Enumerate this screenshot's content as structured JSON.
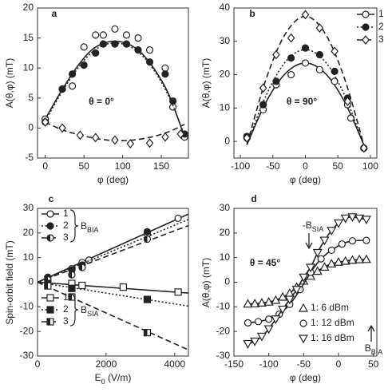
{
  "chart_data": [
    {
      "type": "scatter",
      "panel": "a",
      "note": "θ = 0°",
      "x_label": "φ (deg)",
      "y_label": "A(θ,φ)  (mT)",
      "xlim": [
        -10,
        185
      ],
      "xticks": [
        0,
        50,
        100,
        150
      ],
      "ylim": [
        -5,
        20
      ],
      "yticks": [
        -5,
        0,
        5,
        10,
        15,
        20
      ],
      "fit_x": [
        0,
        20,
        40,
        60,
        80,
        100,
        120,
        140,
        160,
        180
      ],
      "series": [
        {
          "marker": "circle-open",
          "dash": "solid",
          "color": "#222",
          "x": [
            0,
            22,
            35,
            50,
            65,
            75,
            90,
            105,
            120,
            135,
            155,
            165,
            180
          ],
          "values": [
            1.5,
            6.5,
            7,
            13.5,
            15.5,
            15.5,
            16.5,
            15.5,
            15,
            13,
            10,
            3.5,
            -1.5
          ],
          "fit_values": [
            1.5,
            6,
            10,
            13,
            14.3,
            14.3,
            13,
            10,
            5.5,
            -1.5
          ]
        },
        {
          "marker": "circle-filled",
          "dash": "dotted",
          "color": "#222",
          "x": [
            0,
            22,
            35,
            50,
            65,
            75,
            90,
            105,
            120,
            135,
            155,
            165,
            180
          ],
          "values": [
            1,
            6.5,
            9,
            10.5,
            12.5,
            14,
            14,
            14,
            13,
            11,
            9,
            4.5,
            -1
          ],
          "fit_values": [
            1.2,
            5.7,
            9.6,
            12.6,
            14,
            14,
            12.7,
            9.7,
            5.2,
            -1.2
          ]
        },
        {
          "marker": "diamond-open",
          "dash": "dashed",
          "color": "#222",
          "x": [
            0,
            22,
            45,
            65,
            90,
            110,
            135,
            155,
            175
          ],
          "values": [
            1,
            0,
            -1.2,
            -1.6,
            -2,
            -2.6,
            -2.5,
            -1.5,
            -1
          ],
          "fit_values": [
            1,
            -0.2,
            -1,
            -1.6,
            -2,
            -2.1,
            -1.9,
            -1.4,
            -0.6,
            0.6
          ]
        }
      ]
    },
    {
      "type": "scatter",
      "panel": "b",
      "note": "θ = 90°",
      "x_label": "φ (deg)",
      "y_label": "A(θ,φ)  (mT)",
      "xlim": [
        -110,
        110
      ],
      "xticks": [
        -100,
        -50,
        0,
        50,
        100
      ],
      "ylim": [
        -5,
        40
      ],
      "yticks": [
        0,
        10,
        20,
        30,
        40
      ],
      "fit_x": [
        -90,
        -60,
        -30,
        0,
        30,
        60,
        90
      ],
      "series": [
        {
          "name": "1",
          "marker": "circle-open",
          "dash": "solid",
          "color": "#222",
          "x": [
            -90,
            -65,
            -45,
            -22,
            0,
            22,
            45,
            65,
            70,
            90
          ],
          "values": [
            1,
            9.5,
            17,
            20,
            23.5,
            21.5,
            18,
            11,
            7,
            -2
          ],
          "fit_values": [
            -1,
            12,
            20.5,
            23.5,
            20.5,
            12,
            -1
          ]
        },
        {
          "name": "2",
          "marker": "circle-filled",
          "dash": "dotted",
          "color": "#222",
          "x": [
            -90,
            -65,
            -45,
            -22,
            0,
            22,
            45,
            65,
            90
          ],
          "values": [
            1.5,
            11,
            18,
            25,
            28,
            26,
            21,
            13,
            -2
          ],
          "fit_values": [
            -1,
            14,
            24,
            27.5,
            24,
            14,
            -1
          ]
        },
        {
          "name": "3",
          "marker": "diamond-open",
          "dash": "dashed",
          "color": "#222",
          "x": [
            -90,
            -65,
            -45,
            -22,
            0,
            22,
            45,
            65,
            90
          ],
          "values": [
            1,
            16,
            26,
            31,
            38,
            34,
            27,
            12,
            -2
          ],
          "fit_values": [
            -1,
            19,
            32.5,
            37.5,
            32.5,
            19,
            -1
          ]
        }
      ]
    },
    {
      "type": "scatter",
      "panel": "c",
      "x_label": {
        "main": "E",
        "sub": "0",
        "rest": " (V/m)"
      },
      "y_label": "Spin-orbit field  (mT)",
      "xlim": [
        0,
        4400
      ],
      "xticks": [
        0,
        2000,
        4000
      ],
      "ylim": [
        -30,
        30
      ],
      "yticks": [
        -30,
        -20,
        -10,
        0,
        10,
        20,
        30
      ],
      "group_labels": [
        {
          "main": "B",
          "sub": "BIA"
        },
        {
          "main": "B",
          "sub": "SIA"
        }
      ],
      "fit_x": [
        0,
        4400
      ],
      "series": [
        {
          "name": "1",
          "marker": "circle-open",
          "dash": "solid",
          "color": "#222",
          "x": [
            300,
            1000,
            1300,
            1500,
            3200,
            4100
          ],
          "values": [
            2,
            5.5,
            8,
            9,
            19.5,
            26
          ],
          "fit_values": [
            0,
            27.7
          ]
        },
        {
          "name": "2",
          "marker": "circle-filled",
          "dash": "dotted",
          "color": "#222",
          "x": [
            300,
            1000,
            1300,
            3200
          ],
          "values": [
            2,
            5,
            7,
            20.5
          ],
          "fit_values": [
            0,
            25.5
          ]
        },
        {
          "name": "3",
          "marker": "circle-half",
          "dash": "dashed",
          "color": "#222",
          "x": [
            300,
            1000,
            1300,
            3200
          ],
          "values": [
            1,
            3,
            6,
            17.5
          ],
          "fit_values": [
            0,
            23
          ]
        },
        {
          "name": "1",
          "marker": "square-open",
          "dash": "solid",
          "color": "#222",
          "x": [
            1000,
            1300,
            2500,
            4100
          ],
          "values": [
            -0.5,
            -1.3,
            -2,
            -4
          ],
          "fit_values": [
            0,
            -4.4
          ]
        },
        {
          "name": "2",
          "marker": "square-filled",
          "dash": "dotted",
          "color": "#222",
          "x": [
            300,
            1000,
            3200
          ],
          "values": [
            -0.5,
            -2.5,
            -7
          ],
          "fit_values": [
            0,
            -9.7
          ]
        },
        {
          "name": "3",
          "marker": "square-half",
          "dash": "dashed",
          "color": "#222",
          "x": [
            300,
            1000,
            3200
          ],
          "values": [
            -1.5,
            -6,
            -20.5
          ],
          "fit_values": [
            0,
            -27.5
          ]
        }
      ]
    },
    {
      "type": "scatter",
      "panel": "d",
      "note": "θ = 45°",
      "x_label": "φ (deg)",
      "y_label": "A(θ,φ)  (mT)",
      "xlim": [
        -150,
        55
      ],
      "xticks": [
        -150,
        -100,
        -50,
        0,
        50
      ],
      "ylim": [
        -30,
        30
      ],
      "yticks": [
        -30,
        -20,
        -10,
        0,
        10,
        20,
        30
      ],
      "arrows": [
        {
          "main": "-B",
          "sub": "SIA"
        },
        {
          "main": "B",
          "sub": "BIA"
        }
      ],
      "line": true,
      "series": [
        {
          "name": "1:  6 dBm",
          "marker": "triangle-up-open",
          "dash": "solid",
          "color": "#222",
          "x": [
            -130,
            -120,
            -110,
            -100,
            -90,
            -80,
            -70,
            -60,
            -50,
            -40,
            -30,
            -20,
            -10,
            0,
            10,
            20,
            30,
            40
          ],
          "values": [
            -8.8,
            -8.7,
            -8.4,
            -8,
            -7.3,
            -6,
            -4.5,
            -2,
            0.5,
            2.5,
            4.5,
            6.2,
            7.5,
            8.2,
            8.6,
            9,
            9.2,
            9.3
          ]
        },
        {
          "name": "1: 12 dBm",
          "marker": "circle-open",
          "dash": "solid",
          "color": "#222",
          "x": [
            -130,
            -115,
            -100,
            -85,
            -70,
            -55,
            -40,
            -25,
            -10,
            5,
            20,
            40
          ],
          "values": [
            -16.5,
            -16,
            -15,
            -13,
            -9,
            -3,
            4,
            9.5,
            13,
            15.5,
            16.8,
            17
          ]
        },
        {
          "name": "1: 16 dBm",
          "marker": "triangle-down-open",
          "dash": "solid",
          "color": "#222",
          "x": [
            -130,
            -120,
            -110,
            -100,
            -90,
            -80,
            -70,
            -60,
            -50,
            -40,
            -30,
            -20,
            -10,
            0,
            10,
            20,
            30,
            40
          ],
          "values": [
            -25,
            -24,
            -22,
            -19,
            -15,
            -11,
            -7,
            -3,
            2,
            6,
            12,
            17,
            21,
            24,
            26,
            26.5,
            26,
            25.5
          ]
        }
      ]
    }
  ]
}
